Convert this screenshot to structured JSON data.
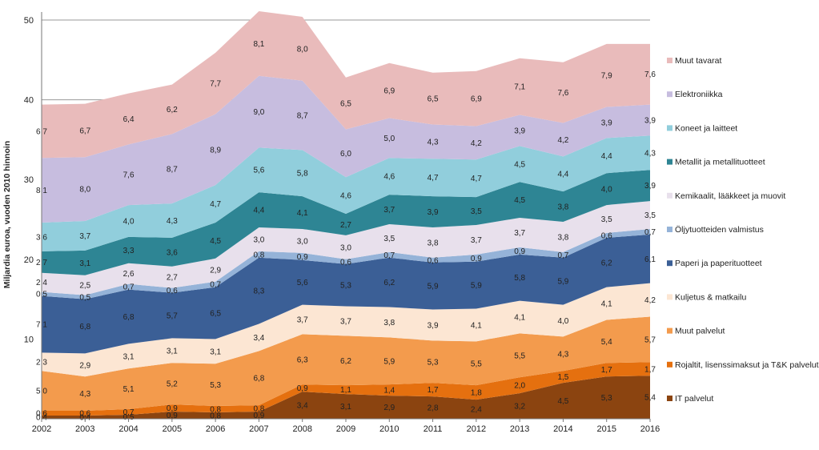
{
  "chart_data": {
    "type": "area",
    "stacked": true,
    "title": "",
    "xlabel": "",
    "ylabel": "Miljardia euroa, vuoden 2010 hinnoin",
    "ylim": [
      0,
      50
    ],
    "yticks": [
      10,
      20,
      30,
      40,
      50
    ],
    "grid": "horizontal",
    "legend": "right",
    "x": [
      "2002",
      "2003",
      "2004",
      "2005",
      "2006",
      "2007",
      "2008",
      "2009",
      "2010",
      "2011",
      "2012",
      "2013",
      "2014",
      "2015",
      "2016"
    ],
    "series": [
      {
        "name": "IT palvelut",
        "color": "#8b4410",
        "labels": [
          "0,4",
          "0,4",
          "0,5",
          "0,9",
          "0,8",
          "0,9",
          "3,4",
          "3,1",
          "2,9",
          "2,8",
          "2,4",
          "3,2",
          "4,5",
          "5,3",
          "5,4"
        ],
        "values": [
          0.4,
          0.4,
          0.5,
          0.9,
          0.8,
          0.9,
          3.4,
          3.1,
          2.9,
          2.8,
          2.4,
          3.2,
          4.5,
          5.3,
          5.4
        ]
      },
      {
        "name": "Rojaltit, lisenssimaksut ja T&K palvelut",
        "color": "#e5700f",
        "labels": [
          "0,6",
          "0,6",
          "0,7",
          "0,9",
          "0,8",
          "0,8",
          "0,9",
          "1,1",
          "1,4",
          "1,7",
          "1,8",
          "2,0",
          "1,5",
          "1,7",
          "1,7"
        ],
        "values": [
          0.6,
          0.6,
          0.7,
          0.9,
          0.8,
          0.8,
          0.9,
          1.1,
          1.4,
          1.7,
          1.8,
          2.0,
          1.5,
          1.7,
          1.7
        ]
      },
      {
        "name": "Muut palvelut",
        "color": "#f39b4d",
        "labels": [
          "5,0",
          "4,3",
          "5,1",
          "5,2",
          "5,3",
          "6,8",
          "6,3",
          "6,2",
          "5,9",
          "5,3",
          "5,5",
          "5,5",
          "4,3",
          "5,4",
          "5,7"
        ],
        "values": [
          5.0,
          4.3,
          5.1,
          5.2,
          5.3,
          6.8,
          6.3,
          6.2,
          5.9,
          5.3,
          5.5,
          5.5,
          4.3,
          5.4,
          5.7
        ]
      },
      {
        "name": "Kuljetus & matkailu",
        "color": "#fce6d3",
        "labels": [
          "2,3",
          "2,9",
          "3,1",
          "3,1",
          "3,1",
          "3,4",
          "3,7",
          "3,7",
          "3,8",
          "3,9",
          "4,1",
          "4,1",
          "4,0",
          "4,1",
          "4,2"
        ],
        "values": [
          2.3,
          2.9,
          3.1,
          3.1,
          3.1,
          3.4,
          3.7,
          3.7,
          3.8,
          3.9,
          4.1,
          4.1,
          4.0,
          4.1,
          4.2
        ]
      },
      {
        "name": "Paperi ja paperituotteet",
        "color": "#3b5f96",
        "labels": [
          "7,1",
          "6,8",
          "6,8",
          "5,7",
          "6,5",
          "8,3",
          "5,6",
          "5,3",
          "6,2",
          "5,9",
          "5,9",
          "5,8",
          "5,9",
          "6,2",
          "6,1"
        ],
        "values": [
          7.1,
          6.8,
          6.8,
          5.7,
          6.5,
          8.3,
          5.6,
          5.3,
          6.2,
          5.9,
          5.9,
          5.8,
          5.9,
          6.2,
          6.1
        ]
      },
      {
        "name": "Öljytuotteiden valmistus",
        "color": "#95b3d8",
        "labels": [
          "0,5",
          "0,5",
          "0,7",
          "0,6",
          "0,7",
          "0,8",
          "0,9",
          "0,6",
          "0,7",
          "0,6",
          "0,9",
          "0,9",
          "0,7",
          "0,6",
          "0,7"
        ],
        "values": [
          0.5,
          0.5,
          0.7,
          0.6,
          0.7,
          0.8,
          0.9,
          0.6,
          0.7,
          0.6,
          0.9,
          0.9,
          0.7,
          0.6,
          0.7
        ]
      },
      {
        "name": "Kemikaalit, lääkkeet ja muovit",
        "color": "#e8e0ec",
        "labels": [
          "2,4",
          "2,5",
          "2,6",
          "2,7",
          "2,9",
          "3,0",
          "3,0",
          "3,0",
          "3,5",
          "3,8",
          "3,7",
          "3,7",
          "3,8",
          "3,5",
          "3,5"
        ],
        "values": [
          2.4,
          2.5,
          2.6,
          2.7,
          2.9,
          3.0,
          3.0,
          3.0,
          3.5,
          3.8,
          3.7,
          3.7,
          3.8,
          3.5,
          3.5
        ]
      },
      {
        "name": "Metallit ja metallituotteet",
        "color": "#2e8594",
        "labels": [
          "2,7",
          "3,1",
          "3,3",
          "3,6",
          "4,5",
          "4,4",
          "4,1",
          "2,7",
          "3,7",
          "3,9",
          "3,5",
          "4,5",
          "3,8",
          "4,0",
          "3,9"
        ],
        "values": [
          2.7,
          3.1,
          3.3,
          3.6,
          4.5,
          4.4,
          4.1,
          2.7,
          3.7,
          3.9,
          3.5,
          4.5,
          3.8,
          4.0,
          3.9
        ]
      },
      {
        "name": "Koneet ja laitteet",
        "color": "#91cedc",
        "labels": [
          "3,6",
          "3,7",
          "4,0",
          "4,3",
          "4,7",
          "5,6",
          "5,8",
          "4,6",
          "4,6",
          "4,7",
          "4,7",
          "4,5",
          "4,4",
          "4,4",
          "4,3"
        ],
        "values": [
          3.6,
          3.7,
          4.0,
          4.3,
          4.7,
          5.6,
          5.8,
          4.6,
          4.6,
          4.7,
          4.7,
          4.5,
          4.4,
          4.4,
          4.3
        ]
      },
      {
        "name": "Elektroniikka",
        "color": "#c7bddf",
        "labels": [
          "8,1",
          "8,0",
          "7,6",
          "8,7",
          "8,9",
          "9,0",
          "8,7",
          "6,0",
          "5,0",
          "4,3",
          "4,2",
          "3,9",
          "4,2",
          "3,9",
          "3,9"
        ],
        "values": [
          8.1,
          8.0,
          7.6,
          8.7,
          8.9,
          9.0,
          8.7,
          6.0,
          5.0,
          4.3,
          4.2,
          3.9,
          4.2,
          3.9,
          3.9
        ]
      },
      {
        "name": "Muut tavarat",
        "color": "#e9bbbb",
        "labels": [
          "6,7",
          "6,7",
          "6,4",
          "6,2",
          "7,7",
          "8,1",
          "8,0",
          "6,5",
          "6,9",
          "6,5",
          "6,9",
          "7,1",
          "7,6",
          "7,9",
          "7,6"
        ],
        "values": [
          6.7,
          6.7,
          6.4,
          6.2,
          7.7,
          8.1,
          8.0,
          6.5,
          6.9,
          6.5,
          6.9,
          7.1,
          7.6,
          7.9,
          7.6
        ]
      }
    ]
  }
}
